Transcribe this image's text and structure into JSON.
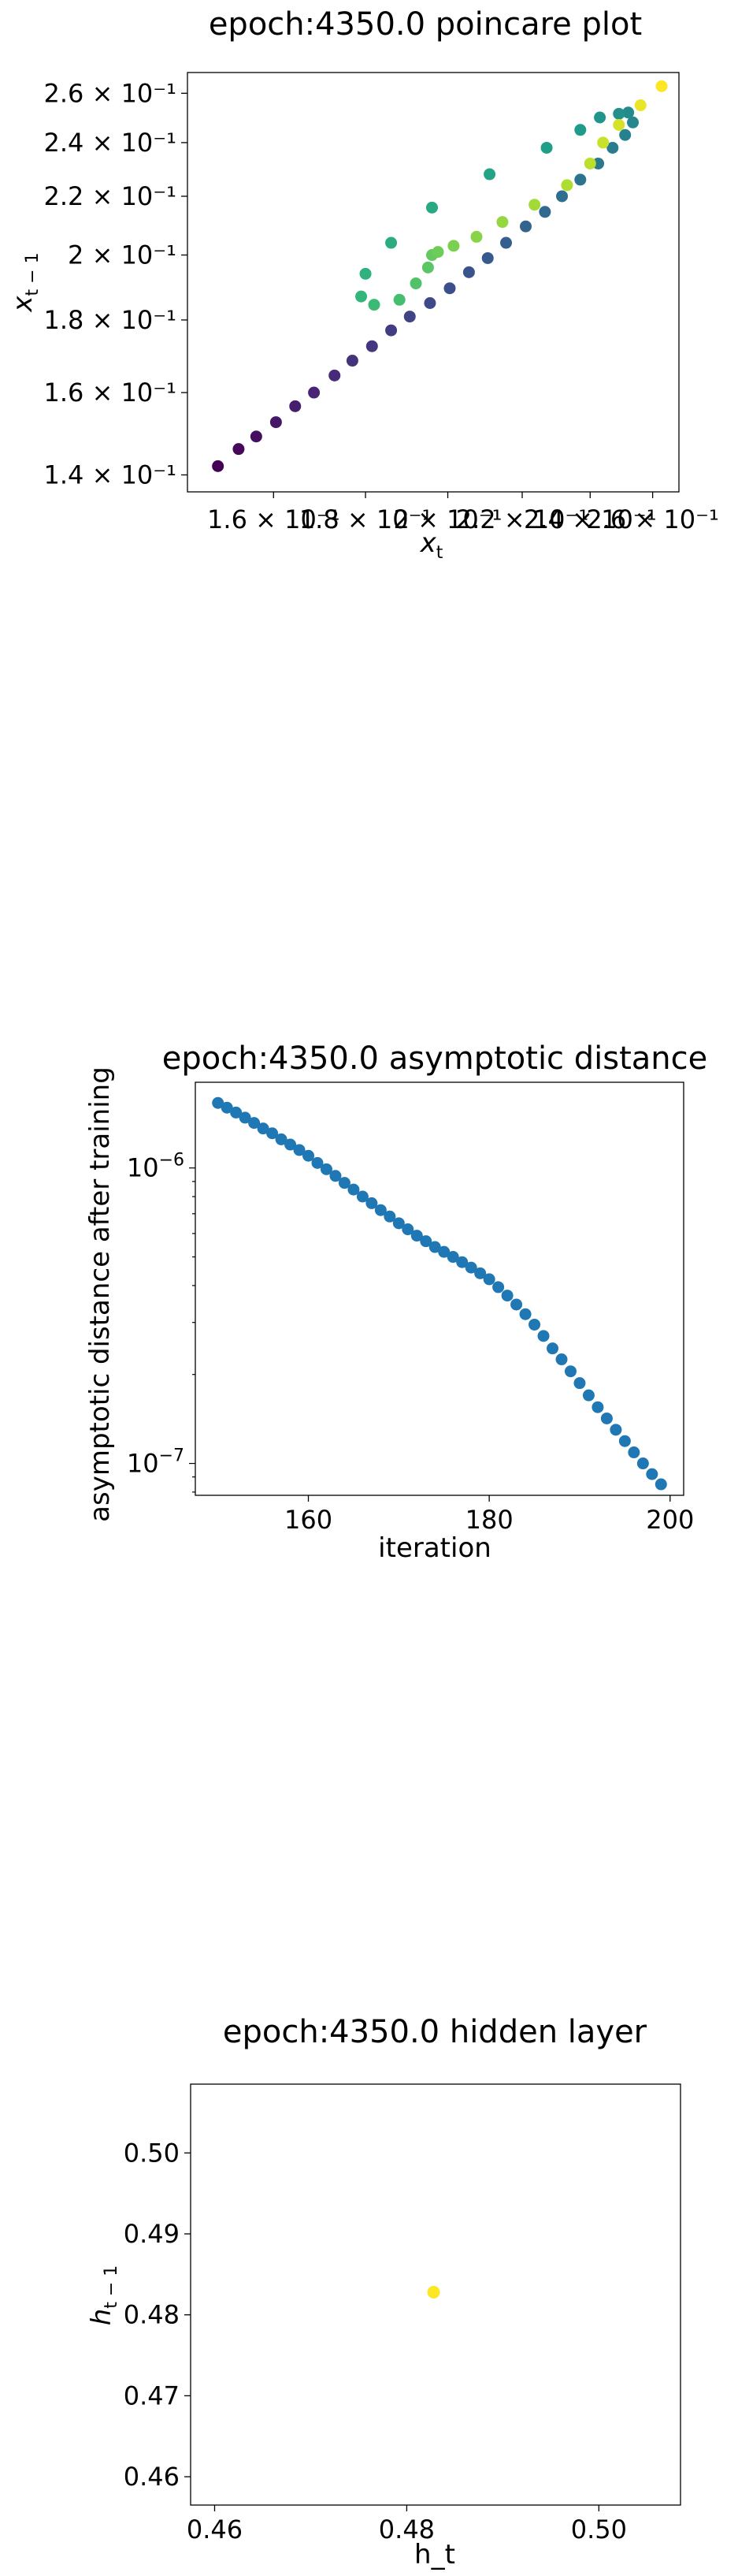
{
  "chart_data": [
    {
      "type": "scatter",
      "title": "epoch:4350.0 poincare plot",
      "xlabel": "x_t",
      "ylabel": "x_{t-1}",
      "xscale": "log",
      "yscale": "log",
      "xlim": [
        0.1433,
        0.2689
      ],
      "ylim": [
        0.1362,
        0.2689
      ],
      "colormap": "viridis",
      "x_tick_labels": [
        {
          "value": 0.16,
          "label": "1.6 × 10⁻¹"
        },
        {
          "value": 0.18,
          "label": "1.8 × 10⁻¹"
        },
        {
          "value": 0.2,
          "label": "2 × 10⁻¹"
        },
        {
          "value": 0.22,
          "label": "2.2 × 10⁻¹"
        },
        {
          "value": 0.24,
          "label": "2.4 × 10⁻¹"
        },
        {
          "value": 0.26,
          "label": "2.6 × 10⁻¹"
        }
      ],
      "y_tick_labels": [
        {
          "value": 0.14,
          "label": "1.4 × 10⁻¹"
        },
        {
          "value": 0.16,
          "label": "1.6 × 10⁻¹"
        },
        {
          "value": 0.18,
          "label": "1.8 × 10⁻¹"
        },
        {
          "value": 0.2,
          "label": "2 × 10⁻¹"
        },
        {
          "value": 0.22,
          "label": "2.2 × 10⁻¹"
        },
        {
          "value": 0.24,
          "label": "2.4 × 10⁻¹"
        },
        {
          "value": 0.26,
          "label": "2.6 × 10⁻¹"
        }
      ],
      "points": [
        {
          "x": 0.149,
          "y": 0.142,
          "c": 0.0
        },
        {
          "x": 0.153,
          "y": 0.146,
          "c": 0.02
        },
        {
          "x": 0.1565,
          "y": 0.149,
          "c": 0.04
        },
        {
          "x": 0.1605,
          "y": 0.1525,
          "c": 0.06
        },
        {
          "x": 0.1645,
          "y": 0.1565,
          "c": 0.08
        },
        {
          "x": 0.1685,
          "y": 0.16,
          "c": 0.1
        },
        {
          "x": 0.173,
          "y": 0.1645,
          "c": 0.12
        },
        {
          "x": 0.177,
          "y": 0.1685,
          "c": 0.14
        },
        {
          "x": 0.1815,
          "y": 0.1725,
          "c": 0.16
        },
        {
          "x": 0.186,
          "y": 0.177,
          "c": 0.18
        },
        {
          "x": 0.1905,
          "y": 0.181,
          "c": 0.2
        },
        {
          "x": 0.1955,
          "y": 0.185,
          "c": 0.22
        },
        {
          "x": 0.2005,
          "y": 0.1895,
          "c": 0.24
        },
        {
          "x": 0.2055,
          "y": 0.1945,
          "c": 0.26
        },
        {
          "x": 0.2105,
          "y": 0.199,
          "c": 0.28
        },
        {
          "x": 0.2155,
          "y": 0.204,
          "c": 0.3
        },
        {
          "x": 0.221,
          "y": 0.2095,
          "c": 0.32
        },
        {
          "x": 0.2265,
          "y": 0.2145,
          "c": 0.34
        },
        {
          "x": 0.2315,
          "y": 0.22,
          "c": 0.36
        },
        {
          "x": 0.237,
          "y": 0.226,
          "c": 0.38
        },
        {
          "x": 0.2425,
          "y": 0.232,
          "c": 0.4
        },
        {
          "x": 0.247,
          "y": 0.238,
          "c": 0.42
        },
        {
          "x": 0.251,
          "y": 0.243,
          "c": 0.44
        },
        {
          "x": 0.2535,
          "y": 0.248,
          "c": 0.46
        },
        {
          "x": 0.252,
          "y": 0.252,
          "c": 0.48
        },
        {
          "x": 0.249,
          "y": 0.2515,
          "c": 0.5
        },
        {
          "x": 0.243,
          "y": 0.25,
          "c": 0.52
        },
        {
          "x": 0.237,
          "y": 0.245,
          "c": 0.54
        },
        {
          "x": 0.227,
          "y": 0.238,
          "c": 0.56
        },
        {
          "x": 0.211,
          "y": 0.228,
          "c": 0.58
        },
        {
          "x": 0.196,
          "y": 0.216,
          "c": 0.6
        },
        {
          "x": 0.186,
          "y": 0.204,
          "c": 0.62
        },
        {
          "x": 0.18,
          "y": 0.194,
          "c": 0.64
        },
        {
          "x": 0.179,
          "y": 0.187,
          "c": 0.66
        },
        {
          "x": 0.182,
          "y": 0.1845,
          "c": 0.68
        },
        {
          "x": 0.188,
          "y": 0.186,
          "c": 0.7
        },
        {
          "x": 0.192,
          "y": 0.191,
          "c": 0.72
        },
        {
          "x": 0.195,
          "y": 0.196,
          "c": 0.74
        },
        {
          "x": 0.196,
          "y": 0.2,
          "c": 0.76
        },
        {
          "x": 0.1975,
          "y": 0.201,
          "c": 0.78
        },
        {
          "x": 0.2015,
          "y": 0.203,
          "c": 0.8
        },
        {
          "x": 0.2075,
          "y": 0.206,
          "c": 0.82
        },
        {
          "x": 0.2145,
          "y": 0.211,
          "c": 0.84
        },
        {
          "x": 0.2235,
          "y": 0.217,
          "c": 0.86
        },
        {
          "x": 0.233,
          "y": 0.224,
          "c": 0.88
        },
        {
          "x": 0.24,
          "y": 0.232,
          "c": 0.9
        },
        {
          "x": 0.244,
          "y": 0.24,
          "c": 0.92
        },
        {
          "x": 0.249,
          "y": 0.247,
          "c": 0.94
        },
        {
          "x": 0.256,
          "y": 0.255,
          "c": 0.97
        },
        {
          "x": 0.263,
          "y": 0.263,
          "c": 1.0
        }
      ]
    },
    {
      "type": "scatter",
      "title": "epoch:4350.0 asymptotic distance",
      "xlabel": "iteration",
      "ylabel": "asymptotic distance after training",
      "xscale": "linear",
      "yscale": "log",
      "xlim": [
        147.5,
        201.5
      ],
      "ylim": [
        7.8e-08,
        1.95e-06
      ],
      "color": "#1f77b4",
      "x_ticks": [
        160,
        180,
        200
      ],
      "y_tick_labels": [
        {
          "value": 1e-06,
          "label_base": "10",
          "label_exp": "−6"
        },
        {
          "value": 1e-07,
          "label_base": "10",
          "label_exp": "−7"
        }
      ],
      "x": [
        150,
        151,
        152,
        153,
        154,
        155,
        156,
        157,
        158,
        159,
        160,
        161,
        162,
        163,
        164,
        165,
        166,
        167,
        168,
        169,
        170,
        171,
        172,
        173,
        174,
        175,
        176,
        177,
        178,
        179,
        180,
        181,
        182,
        183,
        184,
        185,
        186,
        187,
        188,
        189,
        190,
        191,
        192,
        193,
        194,
        195,
        196,
        197,
        198,
        199
      ],
      "y": [
        1.66e-06,
        1.6e-06,
        1.54e-06,
        1.48e-06,
        1.42e-06,
        1.36e-06,
        1.31e-06,
        1.25e-06,
        1.2e-06,
        1.15e-06,
        1.1e-06,
        1.04e-06,
        9.9e-07,
        9.4e-07,
        8.9e-07,
        8.45e-07,
        8e-07,
        7.6e-07,
        7.2e-07,
        6.85e-07,
        6.5e-07,
        6.2e-07,
        5.9e-07,
        5.65e-07,
        5.4e-07,
        5.2e-07,
        5e-07,
        4.8e-07,
        4.6e-07,
        4.4e-07,
        4.2e-07,
        3.95e-07,
        3.7e-07,
        3.45e-07,
        3.2e-07,
        2.95e-07,
        2.7e-07,
        2.45e-07,
        2.25e-07,
        2.05e-07,
        1.87e-07,
        1.7e-07,
        1.55e-07,
        1.42e-07,
        1.3e-07,
        1.19e-07,
        1.09e-07,
        1e-07,
        9.2e-08,
        8.5e-08
      ]
    },
    {
      "type": "scatter",
      "title": "epoch:4350.0 hidden layer",
      "xlabel": "h_t",
      "ylabel": "h_{t-1}",
      "xscale": "linear",
      "yscale": "linear",
      "xlim": [
        0.4575,
        0.5085
      ],
      "ylim": [
        0.4565,
        0.5085
      ],
      "x_ticks": [
        0.46,
        0.48,
        0.5
      ],
      "y_ticks": [
        0.46,
        0.47,
        0.48,
        0.49,
        0.5
      ],
      "tick_format_decimals": 2,
      "color": "#fde725",
      "points": [
        {
          "x": 0.4828,
          "y": 0.4828
        }
      ]
    }
  ]
}
